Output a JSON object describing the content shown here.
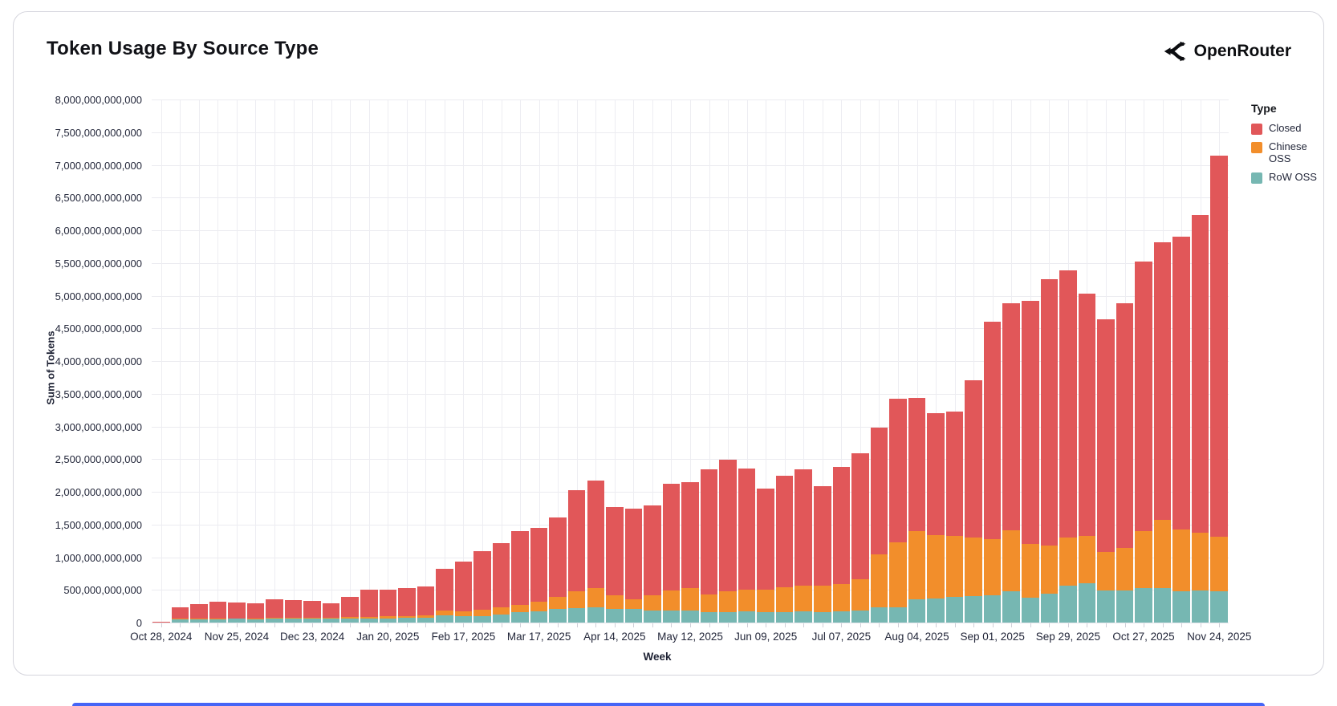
{
  "page": {
    "card_border_color": "#d5d5dd",
    "bottom_bar_color": "#4565f6"
  },
  "header": {
    "title": "Token Usage By Source Type",
    "brand": "OpenRouter"
  },
  "chart_data": {
    "type": "bar",
    "stacked": true,
    "title": "Token Usage By Source Type",
    "xlabel": "Week",
    "ylabel": "Sum of Tokens",
    "unit": "tokens",
    "value_unit": "billions_of_tokens",
    "value_unit_multiplier": 1000000000,
    "ylim_billions": [
      0,
      8000
    ],
    "ytick_step_billions": 500,
    "grid": true,
    "legend_title": "Type",
    "legend_position": "right",
    "x_tick_every": 4,
    "categories": [
      "Oct 28, 2024",
      "Nov 04, 2024",
      "Nov 11, 2024",
      "Nov 18, 2024",
      "Nov 25, 2024",
      "Dec 02, 2024",
      "Dec 09, 2024",
      "Dec 16, 2024",
      "Dec 23, 2024",
      "Dec 30, 2024",
      "Jan 06, 2025",
      "Jan 13, 2025",
      "Jan 20, 2025",
      "Jan 27, 2025",
      "Feb 03, 2025",
      "Feb 10, 2025",
      "Feb 17, 2025",
      "Feb 24, 2025",
      "Mar 03, 2025",
      "Mar 10, 2025",
      "Mar 17, 2025",
      "Mar 24, 2025",
      "Mar 31, 2025",
      "Apr 07, 2025",
      "Apr 14, 2025",
      "Apr 21, 2025",
      "Apr 28, 2025",
      "May 05, 2025",
      "May 12, 2025",
      "May 19, 2025",
      "May 26, 2025",
      "Jun 02, 2025",
      "Jun 09, 2025",
      "Jun 16, 2025",
      "Jun 23, 2025",
      "Jun 30, 2025",
      "Jul 07, 2025",
      "Jul 14, 2025",
      "Jul 21, 2025",
      "Jul 28, 2025",
      "Aug 04, 2025",
      "Aug 11, 2025",
      "Aug 18, 2025",
      "Aug 25, 2025",
      "Sep 01, 2025",
      "Sep 08, 2025",
      "Sep 15, 2025",
      "Sep 22, 2025",
      "Sep 29, 2025",
      "Oct 06, 2025",
      "Oct 13, 2025",
      "Oct 20, 2025",
      "Oct 27, 2025",
      "Nov 03, 2025",
      "Nov 10, 2025",
      "Nov 17, 2025",
      "Nov 24, 2025"
    ],
    "series": [
      {
        "name": "Closed",
        "color": "#e15759",
        "values_billions": [
          14,
          182,
          218,
          257,
          243,
          233,
          285,
          273,
          262,
          227,
          305,
          407,
          412,
          427,
          440,
          634,
          761,
          891,
          989,
          1126,
          1123,
          1220,
          1549,
          1649,
          1351,
          1394,
          1375,
          1640,
          1626,
          1919,
          2005,
          1860,
          1540,
          1710,
          1785,
          1525,
          1785,
          1920,
          1950,
          2190,
          2040,
          1875,
          1905,
          2405,
          3320,
          3480,
          3720,
          4080,
          4085,
          3705,
          3555,
          3750,
          4115,
          4245,
          4480,
          4860,
          5825
        ]
      },
      {
        "name": "Chinese OSS",
        "color": "#f28e2b",
        "values_billions": [
          3,
          8,
          9,
          10,
          10,
          10,
          11,
          11,
          12,
          15,
          20,
          25,
          30,
          33,
          38,
          67,
          70,
          93,
          104,
          113,
          150,
          179,
          258,
          291,
          204,
          150,
          230,
          309,
          334,
          275,
          320,
          330,
          350,
          375,
          395,
          400,
          420,
          480,
          810,
          990,
          1040,
          965,
          935,
          900,
          860,
          935,
          820,
          740,
          740,
          725,
          595,
          650,
          880,
          1045,
          945,
          890,
          835
        ]
      },
      {
        "name": "RoW OSS",
        "color": "#76b7b2",
        "values_billions": [
          8,
          60,
          63,
          66,
          68,
          65,
          70,
          70,
          72,
          70,
          75,
          78,
          78,
          80,
          82,
          129,
          109,
          116,
          137,
          171,
          187,
          221,
          233,
          250,
          225,
          216,
          195,
          191,
          200,
          166,
          175,
          180,
          170,
          175,
          180,
          175,
          185,
          200,
          240,
          250,
          370,
          380,
          400,
          415,
          430,
          485,
          390,
          450,
          575,
          610,
          500,
          500,
          535,
          540,
          485,
          500,
          490
        ]
      }
    ],
    "stack_order_bottom_to_top": [
      "RoW OSS",
      "Chinese OSS",
      "Closed"
    ]
  }
}
